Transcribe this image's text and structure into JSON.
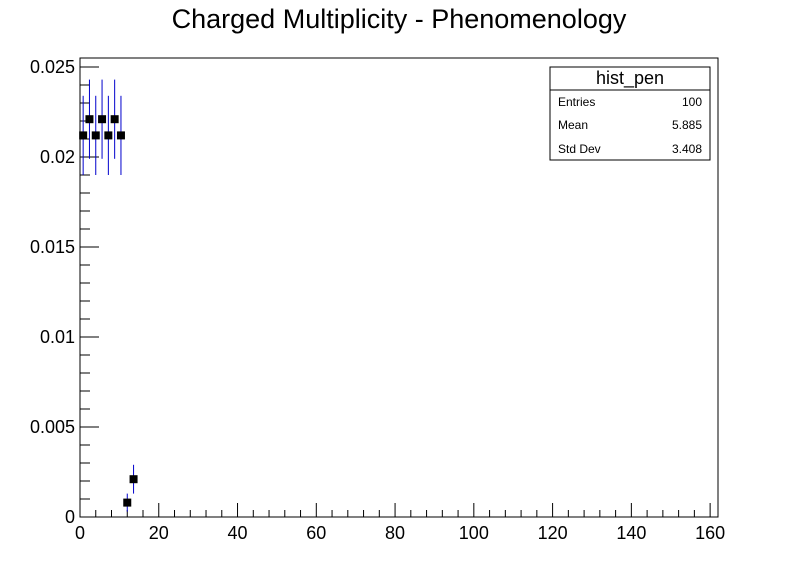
{
  "chart_data": {
    "type": "scatter",
    "title": "Charged Multiplicity - Phenomenology",
    "xlabel": "",
    "ylabel": "",
    "xlim": [
      0,
      162
    ],
    "ylim": [
      0,
      0.0255
    ],
    "x_ticks": [
      0,
      20,
      40,
      60,
      80,
      100,
      120,
      140,
      160
    ],
    "y_ticks": [
      0,
      0.005,
      0.01,
      0.015,
      0.02,
      0.025
    ],
    "x_tick_labels": [
      "0",
      "20",
      "40",
      "60",
      "80",
      "100",
      "120",
      "140",
      "160"
    ],
    "y_tick_labels": [
      "0",
      "0.005",
      "0.01",
      "0.015",
      "0.02",
      "0.025"
    ],
    "grid": false,
    "series": [
      {
        "marker": "square",
        "marker_color": "#000000",
        "error_color": "#0000cc",
        "points": [
          {
            "x": 0.8,
            "y": 0.0212,
            "err": 0.0022
          },
          {
            "x": 2.4,
            "y": 0.0221,
            "err": 0.0022
          },
          {
            "x": 4.0,
            "y": 0.0212,
            "err": 0.0022
          },
          {
            "x": 5.6,
            "y": 0.0221,
            "err": 0.0022
          },
          {
            "x": 7.2,
            "y": 0.0212,
            "err": 0.0022
          },
          {
            "x": 8.8,
            "y": 0.0221,
            "err": 0.0022
          },
          {
            "x": 10.4,
            "y": 0.0212,
            "err": 0.0022
          },
          {
            "x": 12.0,
            "y": 0.0008,
            "err": 0.0005
          },
          {
            "x": 13.6,
            "y": 0.0021,
            "err": 0.0008
          }
        ]
      }
    ],
    "stats_box": {
      "name": "hist_pen",
      "position": "top-right",
      "rows": [
        {
          "label": "Entries",
          "value": "100"
        },
        {
          "label": "Mean",
          "value": "5.885"
        },
        {
          "label": "Std Dev",
          "value": "3.408"
        }
      ]
    }
  }
}
